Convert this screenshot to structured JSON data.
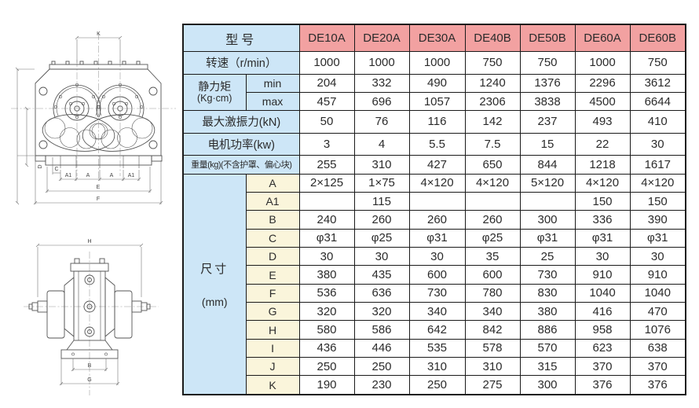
{
  "colors": {
    "header_pink": "#F2A1A1",
    "label_blue": "#CDE6F7",
    "dim_yellow": "#FAF5DB",
    "border": "#1a1a1a",
    "text": "#2b2b2b",
    "drawing_line": "#555555"
  },
  "table": {
    "model_header": "型号",
    "models": [
      "DE10A",
      "DE20A",
      "DE30A",
      "DE40B",
      "DE50B",
      "DE60A",
      "DE60B"
    ],
    "speed": {
      "label": "转速（r/min）",
      "values": [
        "1000",
        "1000",
        "1000",
        "750",
        "750",
        "1000",
        "750"
      ]
    },
    "static_moment": {
      "label": "静力矩",
      "unit": "(Kg·cm)",
      "min_label": "min",
      "max_label": "max",
      "min": [
        "204",
        "332",
        "490",
        "1240",
        "1376",
        "2296",
        "3612"
      ],
      "max": [
        "457",
        "696",
        "1057",
        "2306",
        "3838",
        "4500",
        "6644"
      ]
    },
    "max_force": {
      "label": "最大激振力(kN)",
      "values": [
        "50",
        "76",
        "116",
        "142",
        "237",
        "493",
        "410"
      ]
    },
    "motor_power": {
      "label": "电机功率(kw)",
      "values": [
        "3",
        "4",
        "5.5",
        "7.5",
        "15",
        "22",
        "30"
      ]
    },
    "weight": {
      "label": "重量(kg)(不含护罩、偏心块)",
      "values": [
        "255",
        "310",
        "427",
        "650",
        "844",
        "1218",
        "1617"
      ]
    },
    "dimensions": {
      "label": "尺寸",
      "unit": "(mm)",
      "rows": [
        {
          "name": "A",
          "values": [
            "2×125",
            "1×75",
            "4×120",
            "4×120",
            "5×120",
            "4×120",
            "4×120"
          ]
        },
        {
          "name": "A1",
          "values": [
            "",
            "115",
            "",
            "",
            "",
            "150",
            "150"
          ]
        },
        {
          "name": "B",
          "values": [
            "240",
            "260",
            "260",
            "260",
            "300",
            "336",
            "390"
          ]
        },
        {
          "name": "C",
          "values": [
            "φ31",
            "φ25",
            "φ31",
            "φ25",
            "φ31",
            "φ31",
            "φ31"
          ]
        },
        {
          "name": "D",
          "values": [
            "30",
            "30",
            "30",
            "35",
            "25",
            "30",
            "30"
          ]
        },
        {
          "name": "E",
          "values": [
            "380",
            "435",
            "600",
            "600",
            "730",
            "910",
            "910"
          ]
        },
        {
          "name": "F",
          "values": [
            "536",
            "636",
            "730",
            "780",
            "830",
            "1040",
            "1040"
          ]
        },
        {
          "name": "G",
          "values": [
            "320",
            "320",
            "340",
            "340",
            "380",
            "416",
            "470"
          ]
        },
        {
          "name": "H",
          "values": [
            "580",
            "586",
            "642",
            "842",
            "886",
            "958",
            "1076"
          ]
        },
        {
          "name": "I",
          "values": [
            "436",
            "446",
            "535",
            "578",
            "570",
            "623",
            "638"
          ]
        },
        {
          "name": "J",
          "values": [
            "250",
            "250",
            "310",
            "310",
            "315",
            "370",
            "370"
          ]
        },
        {
          "name": "K",
          "values": [
            "190",
            "230",
            "250",
            "275",
            "300",
            "376",
            "376"
          ]
        }
      ]
    }
  },
  "drawing": {
    "front": {
      "top": "K",
      "segments": [
        "A1",
        "A",
        "A",
        "A1"
      ],
      "c": "C",
      "d": "D",
      "e": "E",
      "f": "F"
    },
    "side": {
      "top": "H",
      "b": "B",
      "g": "G"
    }
  }
}
